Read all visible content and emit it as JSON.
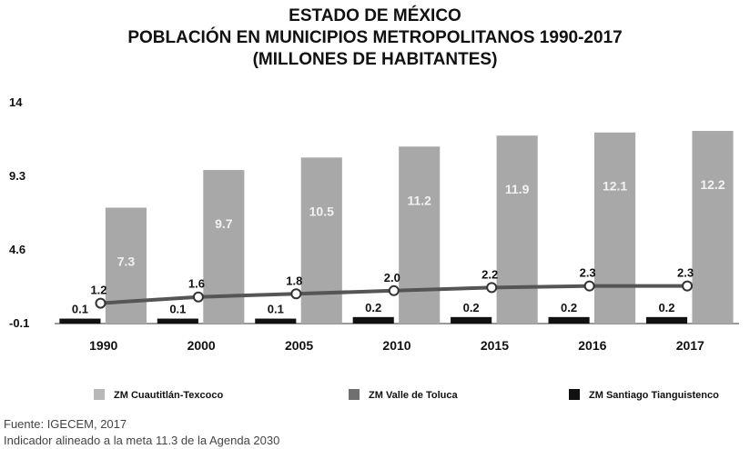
{
  "chart_data": {
    "type": "bar",
    "title": [
      "ESTADO DE MÉXICO",
      "POBLACIÓN EN MUNICIPIOS METROPOLITANOS 1990-2017",
      "(MILLONES DE HABITANTES)"
    ],
    "categories": [
      "1990",
      "2000",
      "2005",
      "2010",
      "2015",
      "2016",
      "2017"
    ],
    "series": [
      {
        "name": "ZM Cuautitlán-Texcoco",
        "values": [
          7.3,
          9.7,
          10.5,
          11.2,
          11.9,
          12.1,
          12.2
        ],
        "color": "#a8a8a8",
        "kind": "bar"
      },
      {
        "name": "ZM Valle de Toluca",
        "values": [
          1.2,
          1.6,
          1.8,
          2.0,
          2.2,
          2.3,
          2.3
        ],
        "color": "#555555",
        "kind": "line"
      },
      {
        "name": "ZM Santiago Tianguistenco",
        "values": [
          0.1,
          0.1,
          0.1,
          0.2,
          0.2,
          0.2,
          0.2
        ],
        "color": "#111111",
        "kind": "bar"
      }
    ],
    "y_ticks": [
      "14",
      "9.3",
      "4.6",
      "-0.1"
    ],
    "ylim": [
      -0.1,
      14
    ],
    "grid": false,
    "legend_position": "bottom"
  },
  "footnotes": {
    "source": "Fuente: IGECEM, 2017",
    "note": "Indicador alineado a la meta 11.3 de la Agenda 2030"
  }
}
